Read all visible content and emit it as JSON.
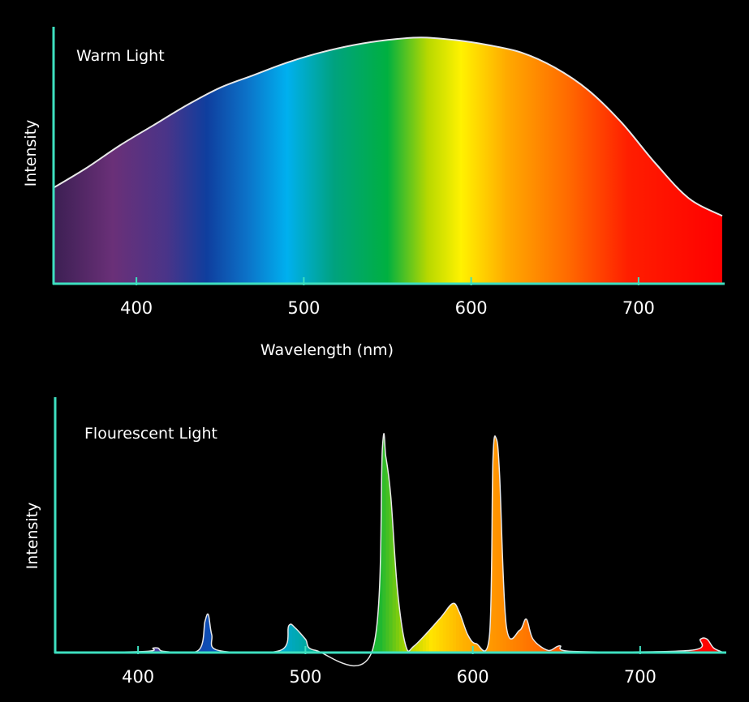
{
  "chart_data": [
    {
      "type": "area",
      "title": "Warm Light",
      "xlabel": "Wavelength (nm)",
      "ylabel": "Intensity",
      "xlim": [
        350,
        750
      ],
      "ylim": [
        0,
        100
      ],
      "xticks": [
        400,
        500,
        600,
        700
      ],
      "grid": false,
      "fill": "visible-spectrum gradient",
      "x": [
        350,
        370,
        390,
        410,
        430,
        450,
        470,
        490,
        510,
        530,
        550,
        570,
        590,
        610,
        630,
        650,
        670,
        690,
        710,
        730,
        750
      ],
      "y": [
        38,
        46,
        55,
        63,
        71,
        78,
        83,
        88,
        92,
        95,
        97,
        98,
        97,
        95,
        92,
        86,
        77,
        64,
        48,
        34,
        27
      ]
    },
    {
      "type": "area",
      "title": "Flourescent Light",
      "xlabel": "",
      "ylabel": "Intensity",
      "xlim": [
        350,
        750
      ],
      "ylim": [
        0,
        100
      ],
      "xticks": [
        400,
        500,
        600,
        700
      ],
      "grid": false,
      "fill": "spectral color per wavelength",
      "x": [
        350,
        404,
        409,
        412,
        416,
        436,
        440,
        442,
        444,
        448,
        485,
        490,
        494,
        500,
        506,
        540,
        546,
        548,
        551,
        555,
        560,
        565,
        580,
        588,
        592,
        597,
        602,
        610,
        612,
        614,
        616,
        620,
        628,
        632,
        636,
        645,
        652,
        660,
        730,
        736,
        740,
        744,
        750
      ],
      "y": [
        0,
        0.5,
        2,
        2,
        0.5,
        1,
        14,
        17,
        8,
        1,
        1,
        12,
        11,
        6,
        1,
        1,
        92,
        88,
        70,
        28,
        3,
        3,
        15,
        22,
        18,
        8,
        4,
        8,
        86,
        96,
        80,
        12,
        10,
        15,
        6,
        1,
        3,
        0.5,
        1,
        6,
        6,
        2,
        0
      ]
    }
  ]
}
